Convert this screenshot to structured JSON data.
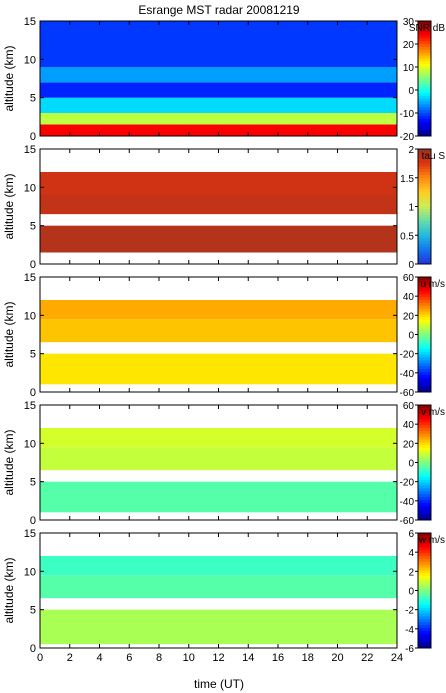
{
  "figure": {
    "title": "Esrange MST radar 20081219",
    "xlabel": "time (UT)"
  },
  "colors": {
    "jet": [
      "#00008f",
      "#0000ff",
      "#0080ff",
      "#00ffff",
      "#80ff80",
      "#ffff00",
      "#ff8000",
      "#ff0000",
      "#800000"
    ],
    "tau": [
      "#2233dd",
      "#1177ee",
      "#22bbdd",
      "#66ddaa",
      "#ccee55",
      "#ffcc22",
      "#ff8811",
      "#dd3311",
      "#993322"
    ]
  },
  "chart_data": [
    {
      "type": "heatmap",
      "name": "snr",
      "ylabel": "altitude (km)",
      "colorbar_label": "SNR dB",
      "x": {
        "lim": [
          0,
          24
        ],
        "ticks": [
          0,
          2,
          4,
          6,
          8,
          10,
          12,
          14,
          16,
          18,
          20,
          22,
          24
        ]
      },
      "y": {
        "lim": [
          0,
          15
        ],
        "ticks": [
          0,
          5,
          10,
          15
        ]
      },
      "cbar": {
        "lim": [
          -20,
          30
        ],
        "ticks": [
          30,
          20,
          10,
          0,
          -10,
          -20
        ]
      },
      "layers": [
        {
          "from": 0.0,
          "to": 1.5,
          "value": 24
        },
        {
          "from": 1.5,
          "to": 3.0,
          "value": 8
        },
        {
          "from": 3.0,
          "to": 5.0,
          "value": -3
        },
        {
          "from": 5.0,
          "to": 7.0,
          "value": -12
        },
        {
          "from": 7.0,
          "to": 9.0,
          "value": -6
        },
        {
          "from": 9.0,
          "to": 15.0,
          "value": -11
        }
      ]
    },
    {
      "type": "heatmap",
      "name": "tau",
      "ylabel": "altitude (km)",
      "colorbar_label": "tau S",
      "x": {
        "lim": [
          0,
          24
        ],
        "ticks": [
          0,
          2,
          4,
          6,
          8,
          10,
          12,
          14,
          16,
          18,
          20,
          22,
          24
        ]
      },
      "y": {
        "lim": [
          0,
          15
        ],
        "ticks": [
          0,
          5,
          10,
          15
        ]
      },
      "cbar": {
        "lim": [
          0,
          2
        ],
        "ticks": [
          2,
          1.5,
          1,
          0.5,
          0
        ]
      },
      "layers": [
        {
          "from": 1.5,
          "to": 5.0,
          "value": 1.9
        },
        {
          "from": 6.5,
          "to": 9.0,
          "value": 1.85
        },
        {
          "from": 9.0,
          "to": 12.0,
          "value": 1.8
        }
      ]
    },
    {
      "type": "heatmap",
      "name": "u",
      "ylabel": "altitude (km)",
      "colorbar_label": "u m/s",
      "x": {
        "lim": [
          0,
          24
        ],
        "ticks": [
          0,
          2,
          4,
          6,
          8,
          10,
          12,
          14,
          16,
          18,
          20,
          22,
          24
        ]
      },
      "y": {
        "lim": [
          0,
          15
        ],
        "ticks": [
          0,
          5,
          10,
          15
        ]
      },
      "cbar": {
        "lim": [
          -60,
          60
        ],
        "ticks": [
          60,
          40,
          20,
          0,
          -20,
          -40,
          -60
        ]
      },
      "layers": [
        {
          "from": 1.0,
          "to": 5.0,
          "value": 18
        },
        {
          "from": 6.5,
          "to": 9.5,
          "value": 22
        },
        {
          "from": 9.5,
          "to": 12.0,
          "value": 25
        }
      ]
    },
    {
      "type": "heatmap",
      "name": "v",
      "ylabel": "altitude (km)",
      "colorbar_label": "v m/s",
      "x": {
        "lim": [
          0,
          24
        ],
        "ticks": [
          0,
          2,
          4,
          6,
          8,
          10,
          12,
          14,
          16,
          18,
          20,
          22,
          24
        ]
      },
      "y": {
        "lim": [
          0,
          15
        ],
        "ticks": [
          0,
          5,
          10,
          15
        ]
      },
      "cbar": {
        "lim": [
          -60,
          60
        ],
        "ticks": [
          60,
          40,
          20,
          0,
          -20,
          -40,
          -60
        ]
      },
      "layers": [
        {
          "from": 1.0,
          "to": 5.0,
          "value": -5
        },
        {
          "from": 6.5,
          "to": 9.5,
          "value": 8
        },
        {
          "from": 9.5,
          "to": 12.0,
          "value": 10
        }
      ]
    },
    {
      "type": "heatmap",
      "name": "w",
      "ylabel": "altitude (km)",
      "colorbar_label": "w m/s",
      "x": {
        "lim": [
          0,
          24
        ],
        "ticks": [
          0,
          2,
          4,
          6,
          8,
          10,
          12,
          14,
          16,
          18,
          20,
          22,
          24
        ]
      },
      "y": {
        "lim": [
          0,
          15
        ],
        "ticks": [
          0,
          5,
          10,
          15
        ]
      },
      "cbar": {
        "lim": [
          -6,
          6
        ],
        "ticks": [
          6,
          4,
          2,
          0,
          -2,
          -4,
          -6
        ]
      },
      "layers": [
        {
          "from": 0.5,
          "to": 5.0,
          "value": 0.5
        },
        {
          "from": 6.5,
          "to": 9.5,
          "value": -0.5
        },
        {
          "from": 9.5,
          "to": 12.0,
          "value": -0.8
        }
      ]
    }
  ]
}
